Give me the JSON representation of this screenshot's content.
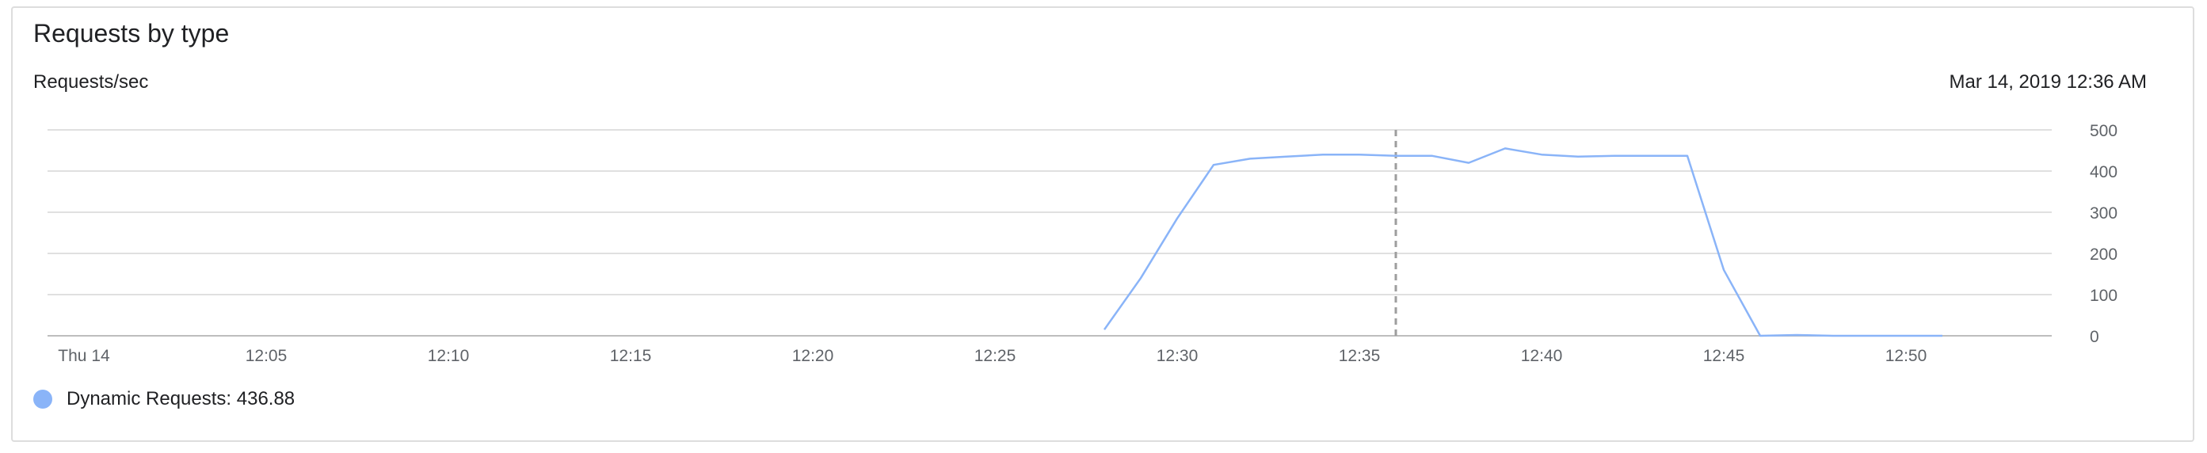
{
  "header": {
    "title": "Requests by type",
    "unit_label": "Requests/sec",
    "timestamp": "Mar 14, 2019 12:36 AM"
  },
  "legend": {
    "label": "Dynamic Requests: 436.88",
    "color": "#8ab4f8"
  },
  "colors": {
    "line": "#8ab4f8",
    "grid": "#e0e0e0",
    "axis_text": "#5f6368",
    "cursor": "#9e9e9e"
  },
  "chart_data": {
    "type": "line",
    "title": "Requests by type",
    "ylabel": "Requests/sec",
    "xlabel": "",
    "grid": true,
    "legend_position": "bottom-left",
    "ylim": [
      0,
      500
    ],
    "y_ticks": [
      0,
      100,
      200,
      300,
      400,
      500
    ],
    "y_axis_side": "right",
    "x_range": [
      "11:59",
      "12:54"
    ],
    "x_ticks": [
      {
        "time": "12:00",
        "label": "Thu 14"
      },
      {
        "time": "12:05",
        "label": "12:05"
      },
      {
        "time": "12:10",
        "label": "12:10"
      },
      {
        "time": "12:15",
        "label": "12:15"
      },
      {
        "time": "12:20",
        "label": "12:20"
      },
      {
        "time": "12:25",
        "label": "12:25"
      },
      {
        "time": "12:30",
        "label": "12:30"
      },
      {
        "time": "12:35",
        "label": "12:35"
      },
      {
        "time": "12:40",
        "label": "12:40"
      },
      {
        "time": "12:45",
        "label": "12:45"
      },
      {
        "time": "12:50",
        "label": "12:50"
      }
    ],
    "cursor_time": "12:36",
    "series": [
      {
        "name": "Dynamic Requests",
        "x": [
          "12:28",
          "12:29",
          "12:30",
          "12:31",
          "12:32",
          "12:33",
          "12:34",
          "12:35",
          "12:36",
          "12:37",
          "12:38",
          "12:39",
          "12:40",
          "12:41",
          "12:42",
          "12:43",
          "12:44",
          "12:45",
          "12:46",
          "12:47",
          "12:48",
          "12:49",
          "12:50",
          "12:51"
        ],
        "values": [
          15,
          140,
          285,
          415,
          430,
          435,
          440,
          440,
          437,
          437,
          420,
          455,
          440,
          435,
          437,
          437,
          437,
          160,
          0,
          2,
          0,
          0,
          0,
          0
        ]
      }
    ]
  }
}
